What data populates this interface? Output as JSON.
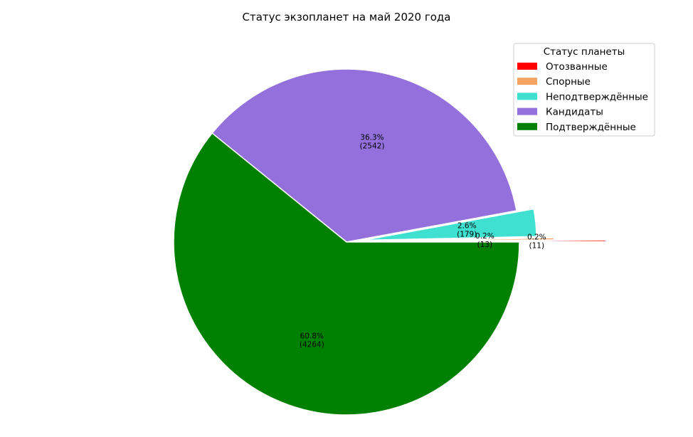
{
  "chart_data": {
    "type": "pie",
    "title": "Статус экзопланет на май 2020 года",
    "legend_title": "Статус планеты",
    "legend_placement": "top-right",
    "start_angle_deg": 0,
    "direction": "counterclockwise",
    "slices": [
      {
        "name": "Отозванные",
        "value": 11,
        "percent_label": "0.2%",
        "count_label": "(11)",
        "color": "#ff0000",
        "explode": 0.5
      },
      {
        "name": "Спорные",
        "value": 13,
        "percent_label": "0.2%",
        "count_label": "(13)",
        "color": "#f4a460",
        "explode": 0.2
      },
      {
        "name": "Неподтверждённые",
        "value": 179,
        "percent_label": "2.6%",
        "count_label": "(179)",
        "color": "#40e0d0",
        "explode": 0.1
      },
      {
        "name": "Кандидаты",
        "value": 2542,
        "percent_label": "36.3%",
        "count_label": "(2542)",
        "color": "#9370db",
        "explode": 0
      },
      {
        "name": "Подтверждённые",
        "value": 4264,
        "percent_label": "60.8%",
        "count_label": "(4264)",
        "color": "#008000",
        "explode": 0
      }
    ]
  }
}
